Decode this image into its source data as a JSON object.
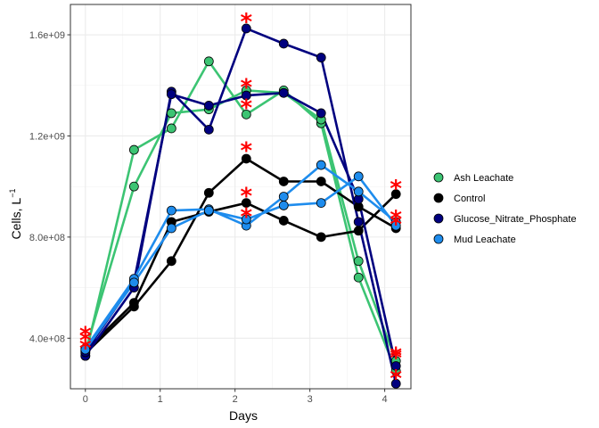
{
  "chart_data": {
    "type": "line",
    "xlabel": "Days",
    "ylabel": "Cells, L",
    "ylabel_superscript": "−1",
    "xlim": [
      -0.2,
      4.35
    ],
    "ylim": [
      200000000,
      1720000000
    ],
    "x_ticks": [
      0,
      1,
      2,
      3,
      4
    ],
    "x_tick_labels": [
      "0",
      "1",
      "2",
      "3",
      "4"
    ],
    "y_ticks": [
      400000000,
      800000000,
      1200000000,
      1600000000
    ],
    "y_tick_labels": [
      "4.0e+08",
      "8.0e+08",
      "1.2e+09",
      "1.6e+09"
    ],
    "grid": true,
    "legend_position": "right",
    "x": [
      0,
      0.65,
      1.15,
      1.65,
      2.15,
      2.65,
      3.15,
      3.65,
      4.15
    ],
    "series": [
      {
        "name": "Ash Leachate",
        "color": "#3cc473",
        "replicates": [
          [
            330000000,
            1145000000,
            1230000000,
            1495000000,
            1285000000,
            1380000000,
            1250000000,
            640000000,
            270000000
          ],
          [
            350000000,
            1000000000,
            1290000000,
            1305000000,
            1380000000,
            1370000000,
            1265000000,
            705000000,
            310000000
          ]
        ],
        "stars": [
          [
            0,
            370000000
          ],
          [
            2.15,
            1400000000
          ],
          [
            4.15,
            330000000
          ]
        ]
      },
      {
        "name": "Control",
        "color": "#000000",
        "replicates": [
          [
            340000000,
            525000000,
            705000000,
            975000000,
            1110000000,
            1020000000,
            1020000000,
            920000000,
            835000000
          ],
          [
            350000000,
            540000000,
            860000000,
            900000000,
            935000000,
            865000000,
            800000000,
            825000000,
            970000000
          ]
        ],
        "stars": [
          [
            0,
            400000000
          ],
          [
            2.15,
            1150000000
          ],
          [
            2.15,
            970000000
          ],
          [
            4.15,
            1000000000
          ],
          [
            4.15,
            860000000
          ]
        ]
      },
      {
        "name": "Glucose_Nitrate_Phosphate",
        "color": "#00007f",
        "replicates": [
          [
            330000000,
            600000000,
            1375000000,
            1225000000,
            1625000000,
            1565000000,
            1510000000,
            860000000,
            220000000
          ],
          [
            345000000,
            625000000,
            1365000000,
            1320000000,
            1360000000,
            1370000000,
            1290000000,
            950000000,
            290000000
          ]
        ],
        "stars": [
          [
            2.15,
            1660000000
          ],
          [
            2.15,
            1320000000
          ],
          [
            4.15,
            250000000
          ],
          [
            4.15,
            340000000
          ]
        ]
      },
      {
        "name": "Mud Leachate",
        "color": "#1e8ced",
        "replicates": [
          [
            360000000,
            635000000,
            905000000,
            910000000,
            845000000,
            960000000,
            1085000000,
            980000000,
            860000000
          ],
          [
            355000000,
            620000000,
            835000000,
            905000000,
            870000000,
            925000000,
            935000000,
            1040000000,
            845000000
          ]
        ],
        "stars": [
          [
            0,
            420000000
          ],
          [
            2.15,
            890000000
          ],
          [
            4.15,
            880000000
          ]
        ]
      }
    ]
  }
}
